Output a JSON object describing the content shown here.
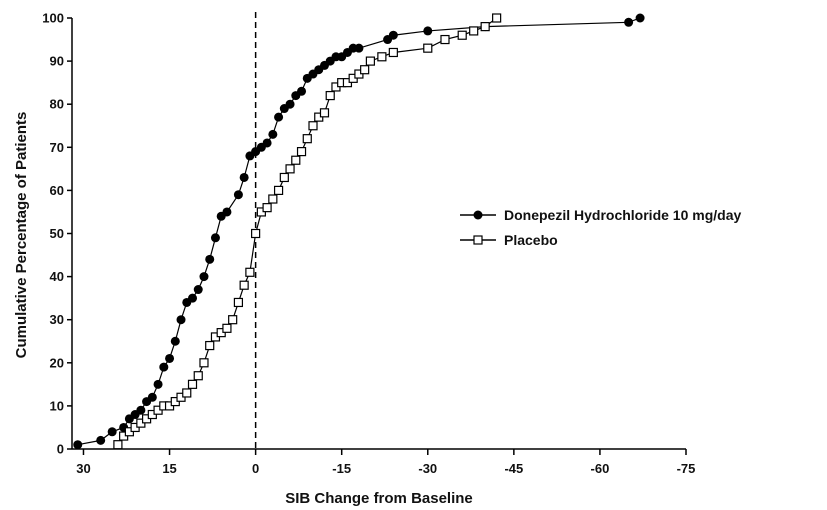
{
  "chart_data": {
    "type": "line",
    "title": "",
    "xlabel": "SIB Change from Baseline",
    "ylabel": "Cumulative Percentage of Patients",
    "xlim": [
      32,
      -75
    ],
    "ylim": [
      0,
      100
    ],
    "x_reversed": true,
    "x_ticks": [
      30,
      15,
      0,
      -15,
      -30,
      -45,
      -60,
      -75
    ],
    "x_tick_labels": [
      "30",
      "15",
      "0",
      "-15",
      "-30",
      "-45",
      "-60",
      "-75"
    ],
    "y_ticks": [
      0,
      10,
      20,
      30,
      40,
      50,
      60,
      70,
      80,
      90,
      100
    ],
    "y_tick_labels": [
      "0",
      "10",
      "20",
      "30",
      "40",
      "50",
      "60",
      "70",
      "80",
      "90",
      "100"
    ],
    "reference_line": {
      "x": 0,
      "style": "dashed"
    },
    "grid": false,
    "legend_position": "right",
    "series": [
      {
        "name": "Donepezil Hydrochloride 10 mg/day",
        "marker": "filled-circle",
        "color": "#000000",
        "x": [
          31,
          27,
          25,
          23,
          22,
          21,
          20,
          19,
          18,
          17,
          16,
          15,
          14,
          13,
          12,
          11,
          10,
          9,
          8,
          7,
          6,
          5,
          3,
          2,
          1,
          0,
          -1,
          -2,
          -3,
          -4,
          -5,
          -6,
          -7,
          -8,
          -9,
          -10,
          -11,
          -12,
          -13,
          -14,
          -15,
          -16,
          -17,
          -18,
          -23,
          -24,
          -30,
          -40,
          -65,
          -67
        ],
        "y": [
          1,
          2,
          4,
          5,
          7,
          8,
          9,
          11,
          12,
          15,
          19,
          21,
          25,
          30,
          34,
          35,
          37,
          40,
          44,
          49,
          54,
          55,
          59,
          63,
          68,
          69,
          70,
          71,
          73,
          77,
          79,
          80,
          82,
          83,
          86,
          87,
          88,
          89,
          90,
          91,
          91,
          92,
          93,
          93,
          95,
          96,
          97,
          98,
          99,
          100
        ]
      },
      {
        "name": "Placebo",
        "marker": "open-square",
        "color": "#000000",
        "x": [
          24,
          23,
          22,
          21,
          20,
          19,
          18,
          17,
          16,
          15,
          14,
          13,
          12,
          11,
          10,
          9,
          8,
          7,
          6,
          5,
          4,
          3,
          2,
          1,
          0,
          -1,
          -2,
          -3,
          -4,
          -5,
          -6,
          -7,
          -8,
          -9,
          -10,
          -11,
          -12,
          -13,
          -14,
          -15,
          -16,
          -17,
          -18,
          -19,
          -20,
          -22,
          -24,
          -30,
          -33,
          -36,
          -38,
          -40,
          -42
        ],
        "y": [
          1,
          3,
          4,
          5,
          6,
          7,
          8,
          9,
          10,
          10,
          11,
          12,
          13,
          15,
          17,
          20,
          24,
          26,
          27,
          28,
          30,
          34,
          38,
          41,
          50,
          55,
          56,
          58,
          60,
          63,
          65,
          67,
          69,
          72,
          75,
          77,
          78,
          82,
          84,
          85,
          85,
          86,
          87,
          88,
          90,
          91,
          92,
          93,
          95,
          96,
          97,
          98,
          100
        ]
      }
    ]
  }
}
